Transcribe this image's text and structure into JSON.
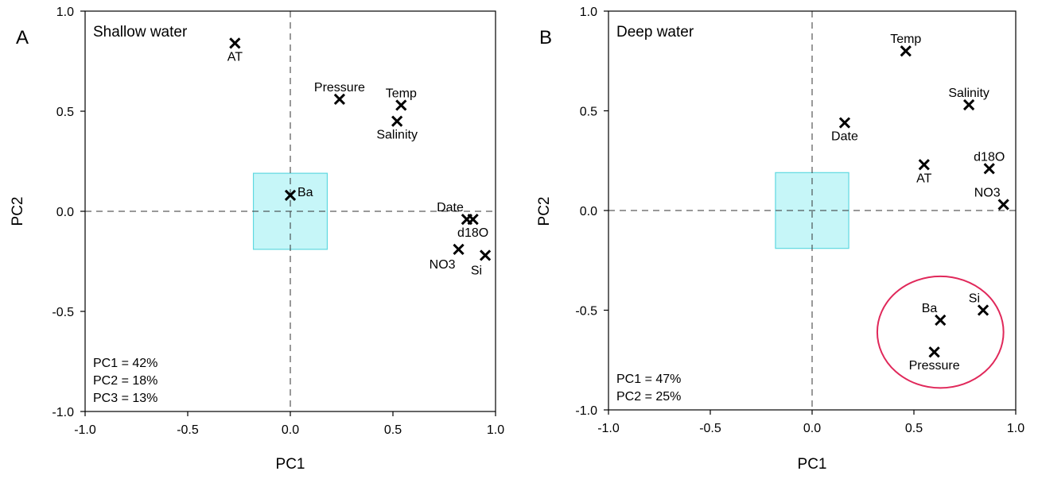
{
  "chart_data": [
    {
      "type": "scatter",
      "panel_label": "A",
      "title": "Shallow water",
      "xlabel": "PC1",
      "ylabel": "PC2",
      "xlim": [
        -1.0,
        1.0
      ],
      "ylim": [
        -1.0,
        1.0
      ],
      "xticks": [
        "-1.0",
        "-0.5",
        "0.0",
        "0.5",
        "1.0"
      ],
      "yticks": [
        "-1.0",
        "-0.5",
        "0.0",
        "0.5",
        "1.0"
      ],
      "reference_lines": {
        "x": 0,
        "y": 0,
        "style": "dashed"
      },
      "highlight_box": {
        "x": [
          -0.18,
          0.18
        ],
        "y": [
          -0.19,
          0.19
        ],
        "color": "#5fd8e0"
      },
      "points": [
        {
          "label": "AT",
          "x": -0.27,
          "y": 0.84,
          "label_pos": "below"
        },
        {
          "label": "Pressure",
          "x": 0.24,
          "y": 0.56,
          "label_pos": "above"
        },
        {
          "label": "Temp",
          "x": 0.54,
          "y": 0.53,
          "label_pos": "above"
        },
        {
          "label": "Salinity",
          "x": 0.52,
          "y": 0.45,
          "label_pos": "below"
        },
        {
          "label": "Ba",
          "x": 0.0,
          "y": 0.08,
          "label_pos": "right"
        },
        {
          "label": "Date",
          "x": 0.86,
          "y": -0.04,
          "label_pos": "above-left"
        },
        {
          "label": "d18O",
          "x": 0.89,
          "y": -0.04,
          "label_pos": "below"
        },
        {
          "label": "NO3",
          "x": 0.82,
          "y": -0.19,
          "label_pos": "below-left"
        },
        {
          "label": "Si",
          "x": 0.95,
          "y": -0.22,
          "label_pos": "below-left"
        }
      ],
      "stats": [
        "PC1 = 42%",
        "PC2 = 18%",
        "PC3 = 13%"
      ]
    },
    {
      "type": "scatter",
      "panel_label": "B",
      "title": "Deep water",
      "xlabel": "PC1",
      "ylabel": "PC2",
      "xlim": [
        -1.0,
        1.0
      ],
      "ylim": [
        -1.0,
        1.0
      ],
      "xticks": [
        "-1.0",
        "-0.5",
        "0.0",
        "0.5",
        "1.0"
      ],
      "yticks": [
        "-1.0",
        "-0.5",
        "0.0",
        "0.5",
        "1.0"
      ],
      "reference_lines": {
        "x": 0,
        "y": 0,
        "style": "dashed"
      },
      "highlight_box": {
        "x": [
          -0.18,
          0.18
        ],
        "y": [
          -0.19,
          0.19
        ],
        "color": "#5fd8e0"
      },
      "highlight_ellipse": {
        "cx": 0.63,
        "cy": -0.61,
        "rx": 0.31,
        "ry": 0.28,
        "color": "#e0285a"
      },
      "points": [
        {
          "label": "Temp",
          "x": 0.46,
          "y": 0.8,
          "label_pos": "above"
        },
        {
          "label": "Salinity",
          "x": 0.77,
          "y": 0.53,
          "label_pos": "above"
        },
        {
          "label": "Date",
          "x": 0.16,
          "y": 0.44,
          "label_pos": "below"
        },
        {
          "label": "AT",
          "x": 0.55,
          "y": 0.23,
          "label_pos": "below"
        },
        {
          "label": "d18O",
          "x": 0.87,
          "y": 0.21,
          "label_pos": "above"
        },
        {
          "label": "NO3",
          "x": 0.94,
          "y": 0.03,
          "label_pos": "above-left"
        },
        {
          "label": "Si",
          "x": 0.84,
          "y": -0.5,
          "label_pos": "above-left"
        },
        {
          "label": "Ba",
          "x": 0.63,
          "y": -0.55,
          "label_pos": "above-left"
        },
        {
          "label": "Pressure",
          "x": 0.6,
          "y": -0.71,
          "label_pos": "below"
        }
      ],
      "stats": [
        "PC1 = 47%",
        "PC2 = 25%"
      ]
    }
  ]
}
